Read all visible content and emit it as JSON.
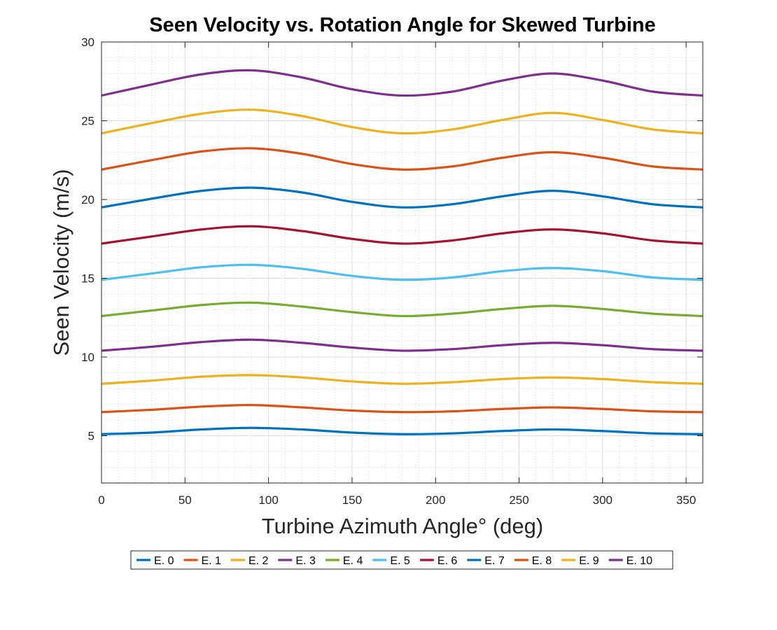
{
  "chart_data": {
    "type": "line",
    "title": "Seen Velocity vs. Rotation Angle for Skewed Turbine",
    "xlabel": "Turbine Azimuth Angle° (deg)",
    "ylabel": "Seen Velocity (m/s)",
    "xlim": [
      0,
      360
    ],
    "ylim": [
      2,
      30
    ],
    "xticks": [
      0,
      50,
      100,
      150,
      200,
      250,
      300,
      350
    ],
    "yticks": [
      5,
      10,
      15,
      20,
      25,
      30
    ],
    "grid": true,
    "minor_grid": true,
    "legend_position": "bottom-outside",
    "x": [
      0,
      30,
      60,
      90,
      120,
      150,
      180,
      210,
      240,
      270,
      300,
      330,
      360
    ],
    "series": [
      {
        "name": "E. 0",
        "color": "#0072BD",
        "values": [
          5.1,
          5.2,
          5.4,
          5.5,
          5.4,
          5.2,
          5.1,
          5.15,
          5.3,
          5.4,
          5.3,
          5.15,
          5.1
        ]
      },
      {
        "name": "E. 1",
        "color": "#D95319",
        "values": [
          6.5,
          6.65,
          6.85,
          6.95,
          6.8,
          6.6,
          6.5,
          6.55,
          6.7,
          6.8,
          6.7,
          6.55,
          6.5
        ]
      },
      {
        "name": "E. 2",
        "color": "#EDB120",
        "values": [
          8.3,
          8.5,
          8.75,
          8.85,
          8.7,
          8.45,
          8.3,
          8.4,
          8.6,
          8.7,
          8.6,
          8.4,
          8.3
        ]
      },
      {
        "name": "E. 3",
        "color": "#7E2F8E",
        "values": [
          10.4,
          10.65,
          10.95,
          11.1,
          10.9,
          10.6,
          10.4,
          10.5,
          10.75,
          10.9,
          10.75,
          10.5,
          10.4
        ]
      },
      {
        "name": "E. 4",
        "color": "#77AC30",
        "values": [
          12.6,
          12.95,
          13.3,
          13.45,
          13.2,
          12.85,
          12.6,
          12.75,
          13.05,
          13.25,
          13.05,
          12.75,
          12.6
        ]
      },
      {
        "name": "E. 5",
        "color": "#4DBEEE",
        "values": [
          14.9,
          15.3,
          15.7,
          15.85,
          15.6,
          15.15,
          14.9,
          15.05,
          15.45,
          15.65,
          15.45,
          15.05,
          14.9
        ]
      },
      {
        "name": "E. 6",
        "color": "#A2142F",
        "values": [
          17.2,
          17.65,
          18.1,
          18.3,
          18.0,
          17.5,
          17.2,
          17.4,
          17.85,
          18.1,
          17.85,
          17.4,
          17.2
        ]
      },
      {
        "name": "E. 7",
        "color": "#0072BD",
        "values": [
          19.5,
          20.05,
          20.55,
          20.75,
          20.45,
          19.85,
          19.5,
          19.7,
          20.2,
          20.55,
          20.2,
          19.7,
          19.5
        ]
      },
      {
        "name": "E. 8",
        "color": "#D95319",
        "values": [
          21.9,
          22.5,
          23.05,
          23.25,
          22.9,
          22.25,
          21.9,
          22.1,
          22.65,
          23.0,
          22.65,
          22.1,
          21.9
        ]
      },
      {
        "name": "E. 9",
        "color": "#EDB120",
        "values": [
          24.2,
          24.85,
          25.45,
          25.7,
          25.3,
          24.6,
          24.2,
          24.45,
          25.05,
          25.5,
          25.05,
          24.45,
          24.2
        ]
      },
      {
        "name": "E. 10",
        "color": "#7E2F8E",
        "values": [
          26.6,
          27.3,
          27.95,
          28.2,
          27.75,
          27.0,
          26.6,
          26.85,
          27.55,
          28.0,
          27.55,
          26.85,
          26.6
        ]
      }
    ]
  }
}
